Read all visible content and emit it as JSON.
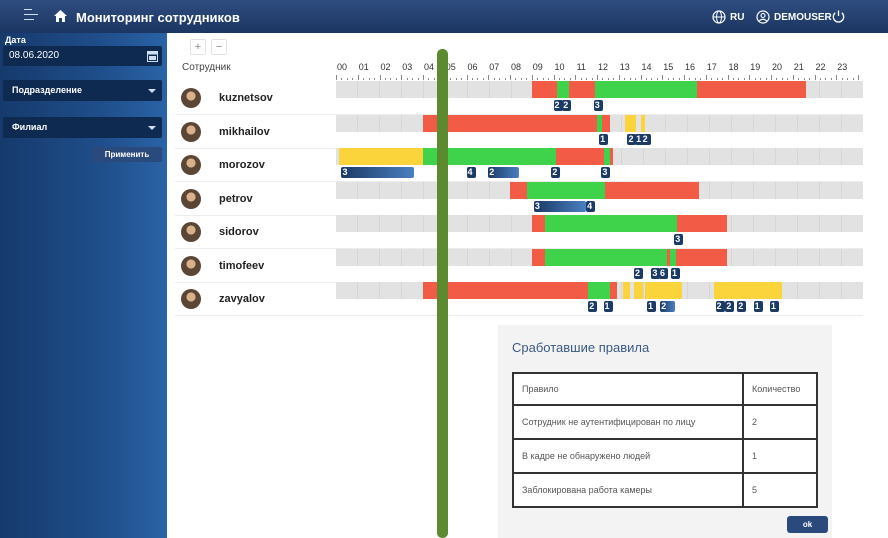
{
  "header": {
    "title": "Мониторинг сотрудников",
    "language": "RU",
    "user": "DEMOUSER"
  },
  "sidebar": {
    "date_label": "Дата",
    "date_value": "08.06.2020",
    "department_select": "Подразделение",
    "branch_select": "Филиал",
    "apply_label": "Применить"
  },
  "timeline": {
    "zoom_in": "+",
    "zoom_out": "−",
    "employee_header": "Сотрудник",
    "hours": [
      "00",
      "01",
      "02",
      "03",
      "04",
      "05",
      "06",
      "07",
      "08",
      "09",
      "10",
      "11",
      "12",
      "13",
      "14",
      "15",
      "16",
      "17",
      "18",
      "19",
      "20",
      "21",
      "22",
      "23"
    ],
    "status_colors": {
      "violation": "#f25c47",
      "active": "#3fd34b",
      "warning": "#fbd43c",
      "inactive": "#e2e2e2"
    },
    "employees": [
      {
        "name": "kuznetsov",
        "segments": [
          {
            "status": "violation",
            "start": 9.0,
            "end": 10.15
          },
          {
            "status": "active",
            "start": 10.15,
            "end": 10.7
          },
          {
            "status": "violation",
            "start": 10.7,
            "end": 11.9
          },
          {
            "status": "active",
            "start": 11.9,
            "end": 16.6
          },
          {
            "status": "violation",
            "start": 16.6,
            "end": 21.6
          }
        ],
        "markers": [
          {
            "label": "2",
            "start": 10.0
          },
          {
            "label": "2",
            "start": 10.4
          },
          {
            "label": "3",
            "start": 11.85
          }
        ]
      },
      {
        "name": "mikhailov",
        "segments": [
          {
            "status": "violation",
            "start": 4.0,
            "end": 12.0
          },
          {
            "status": "active",
            "start": 12.0,
            "end": 12.25
          },
          {
            "status": "violation",
            "start": 12.25,
            "end": 12.6
          },
          {
            "status": "warning",
            "start": 13.3,
            "end": 13.8
          },
          {
            "status": "warning",
            "start": 14.0,
            "end": 14.2
          }
        ],
        "markers": [
          {
            "label": "1",
            "start": 12.1
          },
          {
            "label": "2",
            "start": 13.4
          },
          {
            "label": "1",
            "start": 13.75
          },
          {
            "label": "2",
            "start": 14.05
          }
        ]
      },
      {
        "name": "morozov",
        "segments": [
          {
            "status": "warning",
            "start": 0.15,
            "end": 4.0
          },
          {
            "status": "active",
            "start": 4.0,
            "end": 10.1
          },
          {
            "status": "violation",
            "start": 10.1,
            "end": 12.3
          },
          {
            "status": "active",
            "start": 12.3,
            "end": 12.6
          },
          {
            "status": "violation",
            "start": 12.6,
            "end": 12.75
          }
        ],
        "markers": [
          {
            "label": "3",
            "start": 0.25,
            "end": 3.6
          },
          {
            "label": "4",
            "start": 6.0
          },
          {
            "label": "2",
            "start": 7.0,
            "end": 8.4
          },
          {
            "label": "2",
            "start": 9.9
          },
          {
            "label": "3",
            "start": 12.2
          }
        ]
      },
      {
        "name": "petrov",
        "segments": [
          {
            "status": "violation",
            "start": 8.0,
            "end": 8.8
          },
          {
            "status": "active",
            "start": 8.8,
            "end": 12.35
          },
          {
            "status": "violation",
            "start": 12.35,
            "end": 16.7
          }
        ],
        "markers": [
          {
            "label": "3",
            "start": 9.1,
            "end": 11.5
          },
          {
            "label": "4",
            "start": 11.5
          }
        ]
      },
      {
        "name": "sidorov",
        "segments": [
          {
            "status": "violation",
            "start": 9.0,
            "end": 9.6
          },
          {
            "status": "active",
            "start": 9.6,
            "end": 15.7
          },
          {
            "status": "violation",
            "start": 15.7,
            "end": 18.0
          }
        ],
        "markers": [
          {
            "label": "3",
            "start": 15.55
          }
        ]
      },
      {
        "name": "timofeev",
        "segments": [
          {
            "status": "violation",
            "start": 9.0,
            "end": 9.6
          },
          {
            "status": "active",
            "start": 9.6,
            "end": 15.2
          },
          {
            "status": "violation",
            "start": 15.2,
            "end": 15.35
          },
          {
            "status": "active",
            "start": 15.35,
            "end": 15.65
          },
          {
            "status": "violation",
            "start": 15.65,
            "end": 18.0
          }
        ],
        "markers": [
          {
            "label": "2",
            "start": 13.7
          },
          {
            "label": "3",
            "start": 14.5
          },
          {
            "label": "6",
            "start": 14.85
          },
          {
            "label": "1",
            "start": 15.4
          }
        ]
      },
      {
        "name": "zavyalov",
        "segments": [
          {
            "status": "violation",
            "start": 4.0,
            "end": 11.6
          },
          {
            "status": "active",
            "start": 11.6,
            "end": 12.6
          },
          {
            "status": "violation",
            "start": 12.6,
            "end": 12.9
          },
          {
            "status": "warning",
            "start": 13.2,
            "end": 13.5
          },
          {
            "status": "warning",
            "start": 13.7,
            "end": 14.1
          },
          {
            "status": "warning",
            "start": 14.2,
            "end": 15.9
          },
          {
            "status": "warning",
            "start": 17.4,
            "end": 20.5
          }
        ],
        "markers": [
          {
            "label": "2",
            "start": 11.6
          },
          {
            "label": "1",
            "start": 12.3
          },
          {
            "label": "1",
            "start": 14.3
          },
          {
            "label": "2",
            "start": 14.9,
            "end": 15.6
          },
          {
            "label": "2",
            "start": 17.45
          },
          {
            "label": "2",
            "start": 17.9
          },
          {
            "label": "2",
            "start": 18.45
          },
          {
            "label": "1",
            "start": 19.2
          },
          {
            "label": "1",
            "start": 19.95
          }
        ]
      }
    ]
  },
  "rules_panel": {
    "title": "Сработавшие правила",
    "columns": [
      "Правило",
      "Количество"
    ],
    "rows": [
      {
        "rule": "Сотрудник не аутентифицирован по лицу",
        "count": "2"
      },
      {
        "rule": "В кадре не обнаружено людей",
        "count": "1"
      },
      {
        "rule": "Заблокирована работа камеры",
        "count": "5"
      }
    ],
    "ok_label": "ok"
  }
}
